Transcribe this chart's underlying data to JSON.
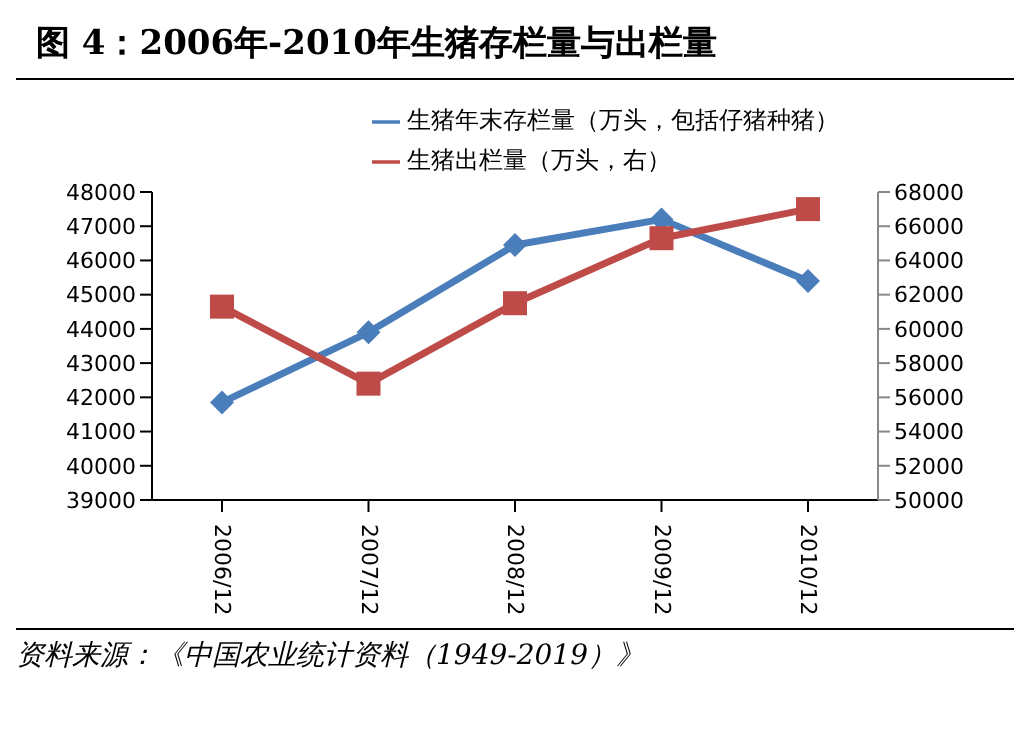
{
  "chart_data": {
    "type": "line",
    "title": "图 4：2006年-2010年生猪存栏量与出栏量",
    "categories": [
      "2006/12",
      "2007/12",
      "2008/12",
      "2009/12",
      "2010/12"
    ],
    "series": [
      {
        "name": "生猪年末存栏量（万头，包括仔猪种猪）",
        "color": "#4a7ebb",
        "values": [
          41850,
          43900,
          46450,
          47200,
          45400
        ],
        "marker": "diamond"
      },
      {
        "name": "生猪出栏量（万头，右）",
        "color": "#be4b48",
        "values": [
          61300,
          56800,
          61500,
          65300,
          67000
        ],
        "axis": "y2",
        "marker": "square"
      }
    ],
    "ylim": [
      39000,
      48000
    ],
    "yticks": [
      39000,
      40000,
      41000,
      42000,
      43000,
      44000,
      45000,
      46000,
      47000,
      48000
    ],
    "y2lim": [
      50000,
      68000
    ],
    "y2ticks": [
      50000,
      52000,
      54000,
      56000,
      58000,
      60000,
      62000,
      64000,
      66000,
      68000
    ],
    "grid": false,
    "legend": "top",
    "line_style": "solid",
    "annotations": [
      "资料来源：《中国农业统计资料（1949-2019）》"
    ]
  }
}
